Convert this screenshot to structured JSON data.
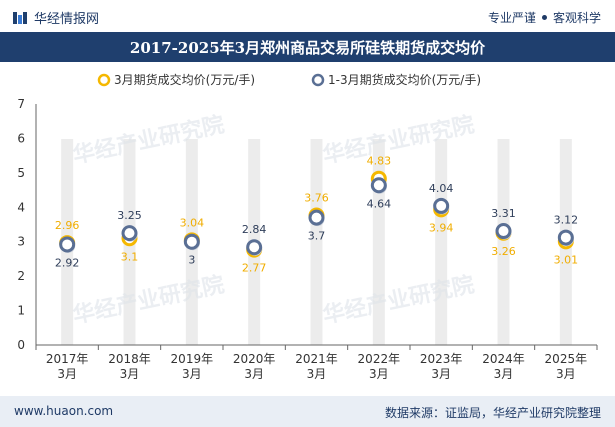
{
  "header": {
    "brand_name": "华经情报网",
    "tagline_left": "专业严谨",
    "tagline_right": "客观科学"
  },
  "colors": {
    "brand": "#1f3f6e",
    "series_march": "#f5b800",
    "series_cumulative": "#5a6f94",
    "band": "#ececec"
  },
  "chart_data": {
    "type": "line",
    "title": "2017-2025年3月郑州商品交易所硅铁期货成交均价",
    "categories": [
      "2017年\n3月",
      "2018年\n3月",
      "2019年\n3月",
      "2020年\n3月",
      "2021年\n3月",
      "2022年\n3月",
      "2023年\n3月",
      "2024年\n3月",
      "2025年\n3月"
    ],
    "series": [
      {
        "name": "3月期货成交均价(万元/手)",
        "values": [
          2.96,
          3.1,
          3.04,
          2.77,
          3.76,
          4.83,
          3.94,
          3.26,
          3.01
        ],
        "labels": [
          "2.96",
          "3.1",
          "3.04",
          "2.77",
          "3.76",
          "4.83",
          "3.94",
          "3.26",
          "3.01"
        ]
      },
      {
        "name": "1-3月期货成交均价(万元/手)",
        "values": [
          2.92,
          3.25,
          3,
          2.84,
          3.7,
          4.64,
          4.04,
          3.31,
          3.12
        ],
        "labels": [
          "2.92",
          "3.25",
          "3",
          "2.84",
          "3.7",
          "4.64",
          "4.04",
          "3.31",
          "3.12"
        ]
      }
    ],
    "ylim": [
      0,
      7
    ],
    "yticks": [
      "0",
      "1",
      "2",
      "3",
      "4",
      "5",
      "6",
      "7"
    ],
    "legend_position": "top-center",
    "grid": false
  },
  "watermark": "华经产业研究院",
  "footer": {
    "site": "www.huaon.com",
    "source": "数据来源：证监局，华经产业研究院整理"
  }
}
